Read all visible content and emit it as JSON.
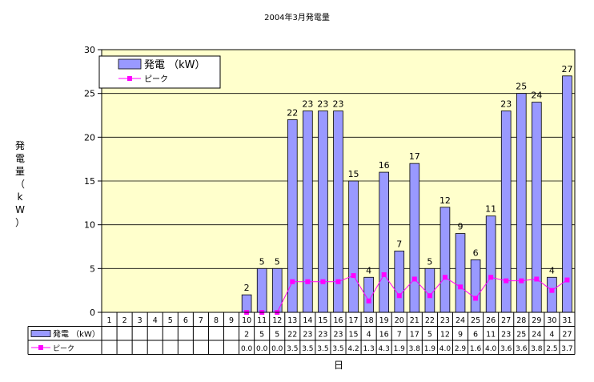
{
  "chart_data": {
    "type": "bar",
    "title": "2004年3月発電量",
    "xlabel": "日",
    "ylabel": "発電量（kW）",
    "ylim": [
      0,
      30
    ],
    "yticks": [
      0,
      5,
      10,
      15,
      20,
      25,
      30
    ],
    "grid": true,
    "legend_position": "top-left",
    "categories": [
      "1",
      "2",
      "3",
      "4",
      "5",
      "6",
      "7",
      "8",
      "9",
      "10",
      "11",
      "12",
      "13",
      "14",
      "15",
      "16",
      "17",
      "18",
      "19",
      "20",
      "21",
      "22",
      "23",
      "24",
      "25",
      "26",
      "27",
      "28",
      "29",
      "30",
      "31"
    ],
    "series": [
      {
        "name": "発電 （kW）",
        "kind": "bar",
        "color": "#9999ff",
        "values": [
          null,
          null,
          null,
          null,
          null,
          null,
          null,
          null,
          null,
          2,
          5,
          5,
          22,
          23,
          23,
          23,
          15,
          4,
          16,
          7,
          17,
          5,
          12,
          9,
          6,
          11,
          23,
          25,
          24,
          4,
          27
        ]
      },
      {
        "name": "ピーク",
        "kind": "line",
        "color": "#ff00ff",
        "values": [
          null,
          null,
          null,
          null,
          null,
          null,
          null,
          null,
          null,
          0.0,
          0.0,
          0.0,
          3.5,
          3.5,
          3.5,
          3.5,
          4.2,
          1.3,
          4.3,
          1.9,
          3.8,
          1.9,
          4.0,
          2.9,
          1.6,
          4.0,
          3.6,
          3.6,
          3.8,
          2.5,
          3.7
        ],
        "labels": [
          "",
          "",
          "",
          "",
          "",
          "",
          "",
          "",
          "",
          "0.0",
          "0.0",
          "0.0",
          "3.5",
          "3.5",
          "3.5",
          "3.5",
          "4.2",
          "1.3",
          "4.3",
          "1.9",
          "3.8",
          "1.9",
          "4.0",
          "2.9",
          "1.6",
          "4.0",
          "3.6",
          "3.6",
          "3.8",
          "2.5",
          "3.7"
        ]
      }
    ]
  }
}
